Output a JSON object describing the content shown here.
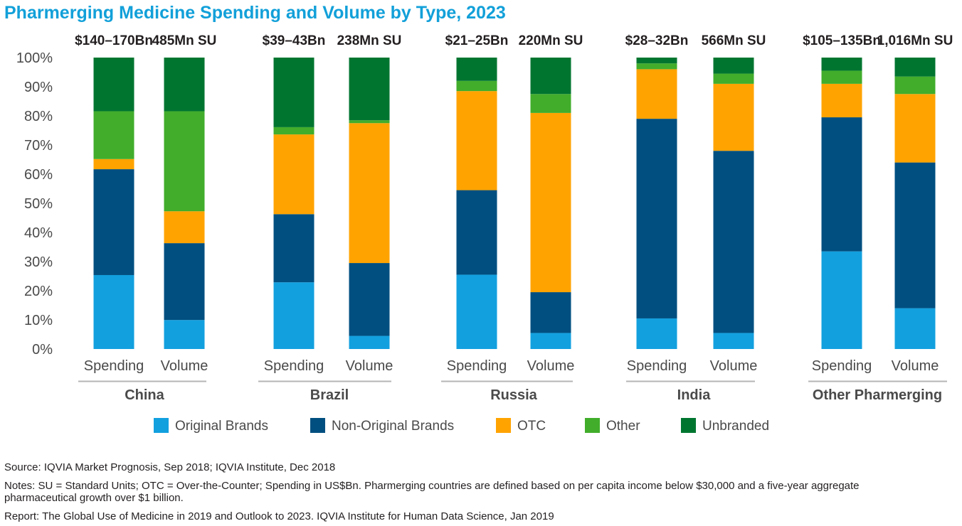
{
  "colors": {
    "Original Brands": "#12a0df",
    "Non-Original Brands": "#004f80",
    "OTC": "#ffa300",
    "Other": "#41ad2b",
    "Unbranded": "#007530",
    "title": "#12a0d9",
    "separator": "#b5b5b5"
  },
  "chart_data": {
    "type": "bar",
    "stacked": true,
    "title": "Pharmerging Medicine Spending and Volume by Type, 2023",
    "ylim": [
      0,
      100
    ],
    "yticks": [
      "0%",
      "10%",
      "20%",
      "30%",
      "40%",
      "50%",
      "60%",
      "70%",
      "80%",
      "90%",
      "100%"
    ],
    "segments": [
      "Original Brands",
      "Non-Original Brands",
      "OTC",
      "Other",
      "Unbranded"
    ],
    "legend_position": "bottom",
    "groups": [
      {
        "name": "China",
        "bars": [
          {
            "category": "Spending",
            "header": "$140–170Bn",
            "values": [
              25.5,
              36.5,
              3.5,
              16.5,
              18.5
            ]
          },
          {
            "category": "Volume",
            "header": "485Mn SU",
            "values": [
              10,
              26.5,
              11,
              34.5,
              18.5
            ]
          }
        ]
      },
      {
        "name": "Brazil",
        "bars": [
          {
            "category": "Spending",
            "header": "$39–43Bn",
            "values": [
              23,
              23.5,
              27.5,
              2.5,
              24
            ]
          },
          {
            "category": "Volume",
            "header": "238Mn SU",
            "values": [
              4.5,
              25,
              48,
              1,
              21.5
            ]
          }
        ]
      },
      {
        "name": "Russia",
        "bars": [
          {
            "category": "Spending",
            "header": "$21–25Bn",
            "values": [
              25.5,
              29,
              34,
              3.5,
              8
            ]
          },
          {
            "category": "Volume",
            "header": "220Mn SU",
            "values": [
              5.5,
              14,
              61.5,
              6.5,
              12.5
            ]
          }
        ]
      },
      {
        "name": "India",
        "bars": [
          {
            "category": "Spending",
            "header": "$28–32Bn",
            "values": [
              10.5,
              68.5,
              17,
              2,
              2
            ]
          },
          {
            "category": "Volume",
            "header": "566Mn SU",
            "values": [
              5.5,
              62.5,
              23,
              3.5,
              5.5
            ]
          }
        ]
      },
      {
        "name": "Other Pharmerging",
        "bars": [
          {
            "category": "Spending",
            "header": "$105–135Bn",
            "values": [
              33.5,
              46,
              11.5,
              4.5,
              4.5
            ]
          },
          {
            "category": "Volume",
            "header": "1,016Mn SU",
            "values": [
              14,
              50,
              23.5,
              6,
              6.5
            ]
          }
        ]
      }
    ]
  },
  "footer": {
    "source": "Source: IQVIA Market Prognosis, Sep 2018; IQVIA Institute, Dec 2018",
    "notes": "Notes: SU = Standard Units; OTC = Over-the-Counter; Spending in US$Bn. Pharmerging countries are defined based on per capita income below $30,000 and a five-year aggregate pharmaceutical growth over $1 billion.",
    "report": "Report: The Global Use of Medicine in 2019 and Outlook to 2023. IQVIA Institute for Human Data Science, Jan 2019"
  }
}
